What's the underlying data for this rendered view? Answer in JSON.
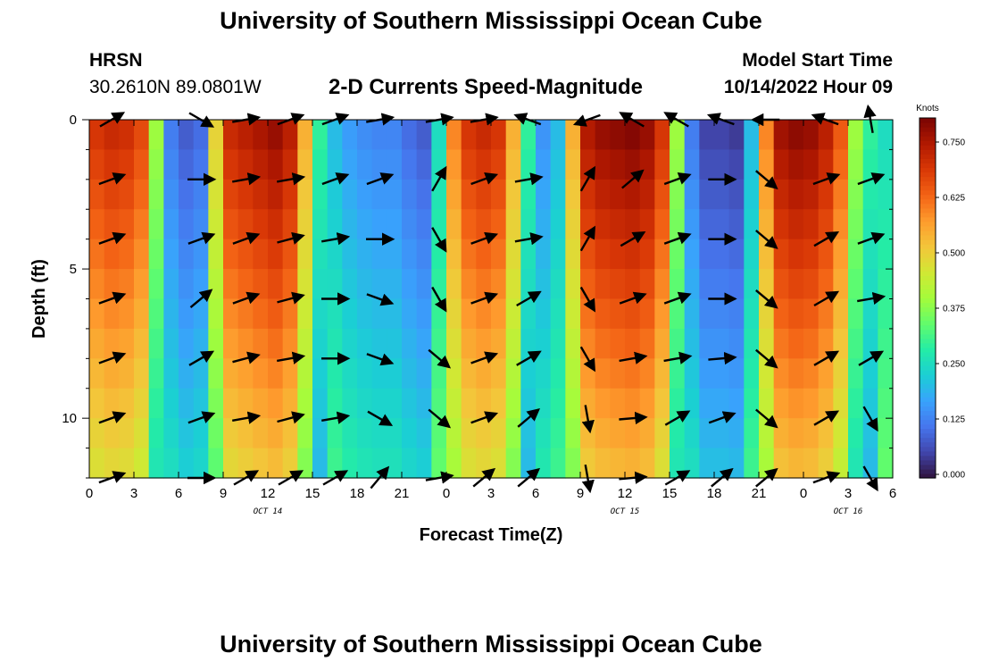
{
  "header": {
    "title": "University of Southern Mississippi Ocean Cube",
    "station": "HRSN",
    "coords": "30.2610N  89.0801W",
    "subtitle": "2-D Currents Speed-Magnitude",
    "start_label": "Model Start Time",
    "start_time": "10/14/2022 Hour 09"
  },
  "footer": {
    "title": "University of Southern Mississippi Ocean Cube"
  },
  "chart_data": {
    "type": "heatmap",
    "title": "2-D Currents Speed-Magnitude",
    "xlabel": "Forecast Time(Z)",
    "ylabel": "Depth (ft)",
    "x_tick_labels": [
      "0",
      "3",
      "6",
      "9",
      "12",
      "15",
      "18",
      "21",
      "0",
      "3",
      "6",
      "9",
      "12",
      "15",
      "18",
      "21",
      "0",
      "3",
      "6"
    ],
    "x_range_hours": [
      0,
      54
    ],
    "y_ticks": [
      0,
      5,
      10
    ],
    "y_range_ft": [
      0,
      12
    ],
    "y_inverted": true,
    "date_labels": [
      {
        "text": "OCT 14",
        "hour": 12
      },
      {
        "text": "OCT 15",
        "hour": 36
      },
      {
        "text": "OCT 16",
        "hour": 51
      }
    ],
    "colorbar": {
      "label": "Knots",
      "ticks": [
        "0.000",
        "0.125",
        "0.250",
        "0.375",
        "0.500",
        "0.625",
        "0.750"
      ],
      "range": [
        0,
        0.8
      ],
      "colors": [
        "#30123b",
        "#4145ab",
        "#4675ed",
        "#39a2fc",
        "#1bcfd4",
        "#24eca6",
        "#61fc6c",
        "#a4fc3b",
        "#d1e834",
        "#f3c63a",
        "#fe9b2d",
        "#f36315",
        "#d93806",
        "#b11901",
        "#7a0403"
      ]
    },
    "depth_rows_ft": [
      0.5,
      1.5,
      2.5,
      3.5,
      4.5,
      5.5,
      6.5,
      7.5,
      8.5,
      9.5,
      10.5,
      11.5
    ],
    "surface_speed_knots_by_hour": [
      0.7,
      0.72,
      0.71,
      0.67,
      0.4,
      0.12,
      0.08,
      0.1,
      0.5,
      0.72,
      0.74,
      0.76,
      0.78,
      0.74,
      0.55,
      0.3,
      0.2,
      0.16,
      0.14,
      0.13,
      0.13,
      0.1,
      0.08,
      0.25,
      0.6,
      0.7,
      0.72,
      0.7,
      0.55,
      0.3,
      0.15,
      0.2,
      0.55,
      0.75,
      0.78,
      0.79,
      0.8,
      0.78,
      0.7,
      0.4,
      0.12,
      0.05,
      0.05,
      0.04,
      0.2,
      0.6,
      0.77,
      0.79,
      0.78,
      0.74,
      0.65,
      0.4,
      0.3,
      0.25,
      0.2
    ],
    "vector_hours": [
      1.5,
      7.5,
      10.5,
      13.5,
      16.5,
      19.5,
      23.5,
      26.5,
      29.5,
      33.5,
      36.5,
      39.5,
      42.5,
      45.5,
      49.5,
      52.5
    ],
    "vector_depths_ft": [
      0,
      2,
      4,
      6,
      8,
      10,
      12
    ],
    "vectors_deg_from_east": [
      [
        30,
        -30,
        10,
        20,
        20,
        10,
        10,
        10,
        160,
        200,
        150,
        150,
        160,
        180,
        160,
        100
      ],
      [
        20,
        0,
        10,
        10,
        20,
        20,
        60,
        20,
        10,
        60,
        40,
        20,
        0,
        -40,
        20,
        20
      ],
      [
        20,
        20,
        20,
        15,
        10,
        0,
        -60,
        20,
        10,
        60,
        30,
        20,
        0,
        -40,
        30,
        20
      ],
      [
        20,
        40,
        20,
        15,
        0,
        -20,
        -60,
        20,
        30,
        -60,
        20,
        20,
        0,
        -40,
        30,
        10
      ],
      [
        20,
        30,
        15,
        10,
        0,
        -20,
        -40,
        20,
        30,
        -60,
        10,
        10,
        5,
        -40,
        30,
        30
      ],
      [
        20,
        20,
        10,
        15,
        10,
        -30,
        -40,
        20,
        40,
        -80,
        5,
        30,
        20,
        -40,
        30,
        -60
      ],
      [
        20,
        0,
        30,
        30,
        30,
        50,
        10,
        40,
        40,
        -80,
        5,
        30,
        40,
        40,
        20,
        -60
      ]
    ]
  }
}
